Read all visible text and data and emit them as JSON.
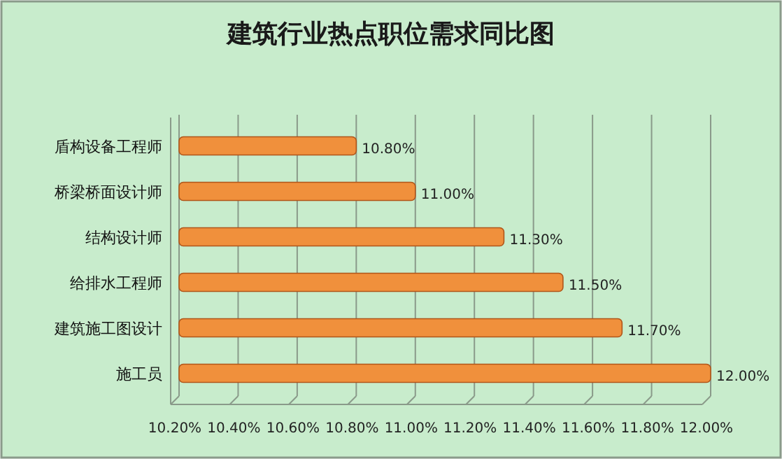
{
  "chart_data": {
    "type": "bar",
    "orientation": "horizontal",
    "title": "建筑行业热点职位需求同比图",
    "categories": [
      "盾构设备工程师",
      "桥梁桥面设计师",
      "结构设计师",
      "给排水工程师",
      "建筑施工图设计",
      "施工员"
    ],
    "values": [
      10.8,
      11.0,
      11.3,
      11.5,
      11.7,
      12.0
    ],
    "value_labels": [
      "10.80%",
      "11.00%",
      "11.30%",
      "11.50%",
      "11.70%",
      "12.00%"
    ],
    "color": "#f0903c",
    "xlim": [
      10.2,
      12.0
    ],
    "xticks": [
      {
        "value": 10.2,
        "label": "10.20%"
      },
      {
        "value": 10.4,
        "label": "10.40%"
      },
      {
        "value": 10.6,
        "label": "10.60%"
      },
      {
        "value": 10.8,
        "label": "10.80%"
      },
      {
        "value": 11.0,
        "label": "11.00%"
      },
      {
        "value": 11.2,
        "label": "11.20%"
      },
      {
        "value": 11.4,
        "label": "11.40%"
      },
      {
        "value": 11.6,
        "label": "11.60%"
      },
      {
        "value": 11.8,
        "label": "11.80%"
      },
      {
        "value": 12.0,
        "label": "12.00%"
      }
    ],
    "grid": "x"
  }
}
